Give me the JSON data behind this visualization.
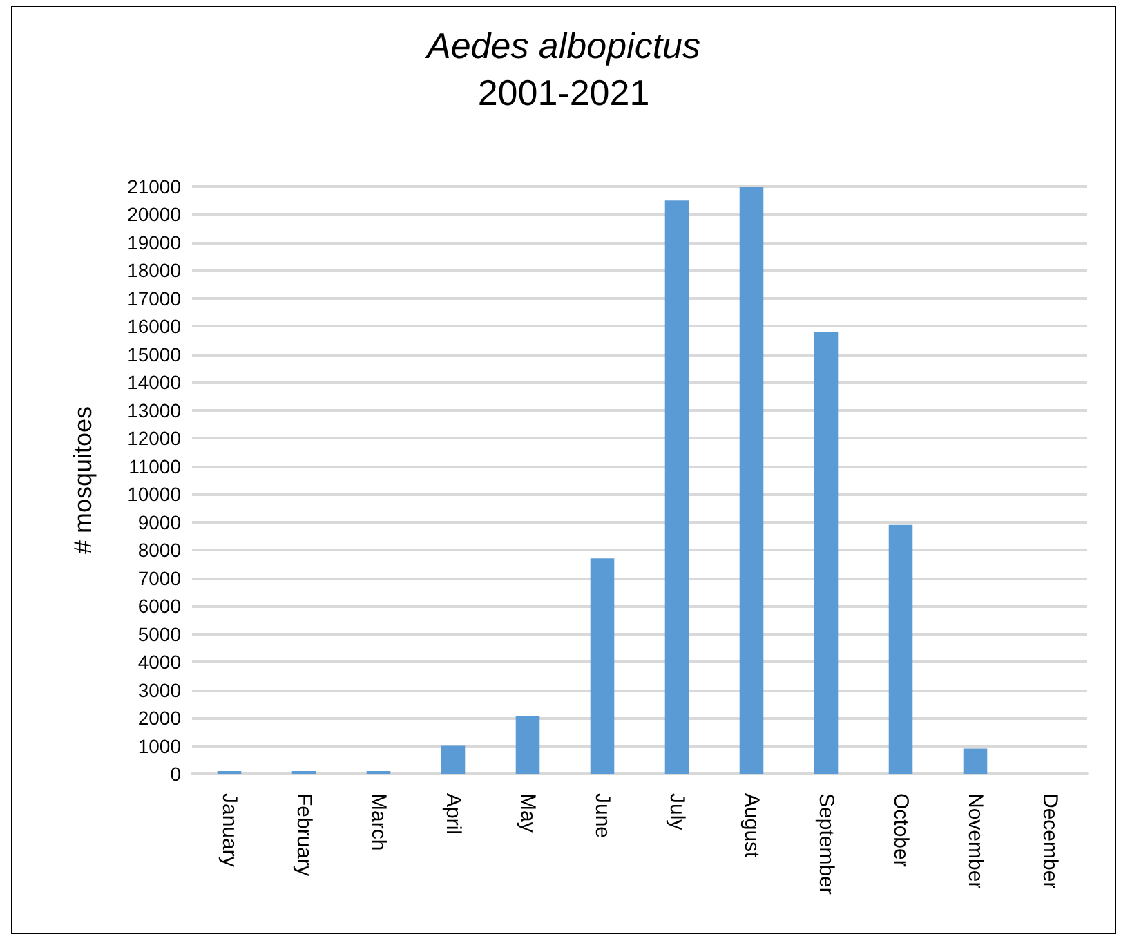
{
  "chart_data": {
    "type": "bar",
    "title": "Aedes albopictus",
    "subtitle": "2001-2021",
    "ylabel": "# mosquitoes",
    "categories": [
      "January",
      "February",
      "March",
      "April",
      "May",
      "June",
      "July",
      "August",
      "September",
      "October",
      "November",
      "December"
    ],
    "values": [
      100,
      100,
      100,
      1000,
      2050,
      7700,
      20500,
      21000,
      15800,
      8900,
      900,
      0
    ],
    "color": "#5b9bd5",
    "ylim": [
      0,
      21000
    ],
    "yticks": [
      0,
      1000,
      2000,
      3000,
      4000,
      5000,
      6000,
      7000,
      8000,
      9000,
      10000,
      11000,
      12000,
      13000,
      14000,
      15000,
      16000,
      17000,
      18000,
      19000,
      20000,
      21000
    ],
    "grid": "y"
  }
}
